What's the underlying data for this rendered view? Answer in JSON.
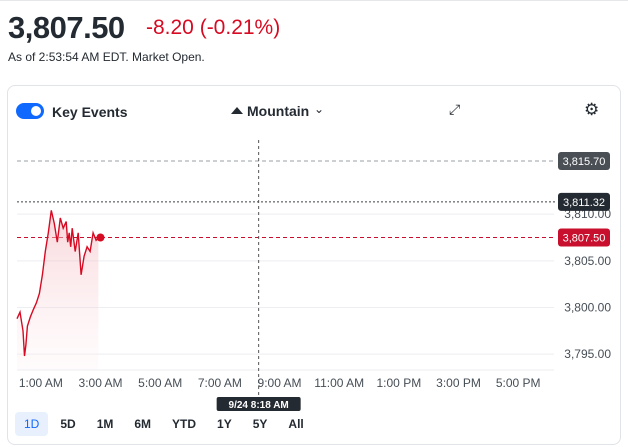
{
  "quote": {
    "price": "3,807.50",
    "change": "-8.20 (-0.21%)",
    "as_of": "As of 2:53:54 AM EDT. Market Open."
  },
  "toolbar": {
    "key_events_label": "Key Events",
    "key_events_on": true,
    "chart_style_label": "Mountain",
    "icons": [
      "toggle-switch",
      "mountain-icon",
      "chevron-down-icon",
      "expand-icon",
      "gear-icon"
    ]
  },
  "ranges": {
    "items": [
      "1D",
      "5D",
      "1M",
      "6M",
      "YTD",
      "1Y",
      "5Y",
      "All"
    ],
    "selected": "1D"
  },
  "colors": {
    "line": "#d60a22",
    "accent": "#0f69ff",
    "badge_dark": "#232a31"
  },
  "chart_data": {
    "type": "area",
    "title": "",
    "xlabel": "",
    "ylabel": "",
    "x_ticks": [
      "1:00 AM",
      "3:00 AM",
      "5:00 AM",
      "7:00 AM",
      "9:00 AM",
      "11:00 AM",
      "1:00 PM",
      "3:00 PM",
      "5:00 PM"
    ],
    "y_ticks": [
      3795.0,
      3800.0,
      3805.0,
      3810.0
    ],
    "y_tick_labels": [
      "3,795.00",
      "3,800.00",
      "3,805.00",
      "3,810.00"
    ],
    "ylim": [
      3793.3,
      3818.7
    ],
    "xlim_hours": [
      0.2,
      18.2
    ],
    "grid": true,
    "reference_lines": [
      {
        "value": 3815.7,
        "label": "3,815.70",
        "style": "gray-dashed"
      },
      {
        "value": 3811.32,
        "label": "3,811.32",
        "style": "dark-dotted"
      },
      {
        "value": 3807.5,
        "label": "3,807.50",
        "style": "red-dashed"
      }
    ],
    "crosshair_label": "9/24 8:18 AM",
    "crosshair_hour": 8.3,
    "series": [
      {
        "x_hours": [
          0.2,
          0.3,
          0.4,
          0.45,
          0.5,
          0.55,
          0.65,
          0.75,
          0.85,
          0.95,
          1.05,
          1.15,
          1.25,
          1.35,
          1.45,
          1.55,
          1.65,
          1.75,
          1.85,
          1.9,
          1.95,
          2.0,
          2.05,
          2.15,
          2.25,
          2.35,
          2.45,
          2.55,
          2.65,
          2.75,
          2.85,
          2.93
        ],
        "values": [
          3798.8,
          3799.5,
          3797.5,
          3794.8,
          3796.0,
          3798.0,
          3799.0,
          3799.8,
          3800.5,
          3801.5,
          3803.5,
          3806.0,
          3808.0,
          3810.4,
          3809.0,
          3807.0,
          3809.6,
          3808.5,
          3809.2,
          3807.0,
          3808.0,
          3806.5,
          3808.5,
          3806.0,
          3808.0,
          3803.5,
          3805.5,
          3806.5,
          3806.0,
          3808.0,
          3807.2,
          3807.5
        ]
      }
    ]
  }
}
